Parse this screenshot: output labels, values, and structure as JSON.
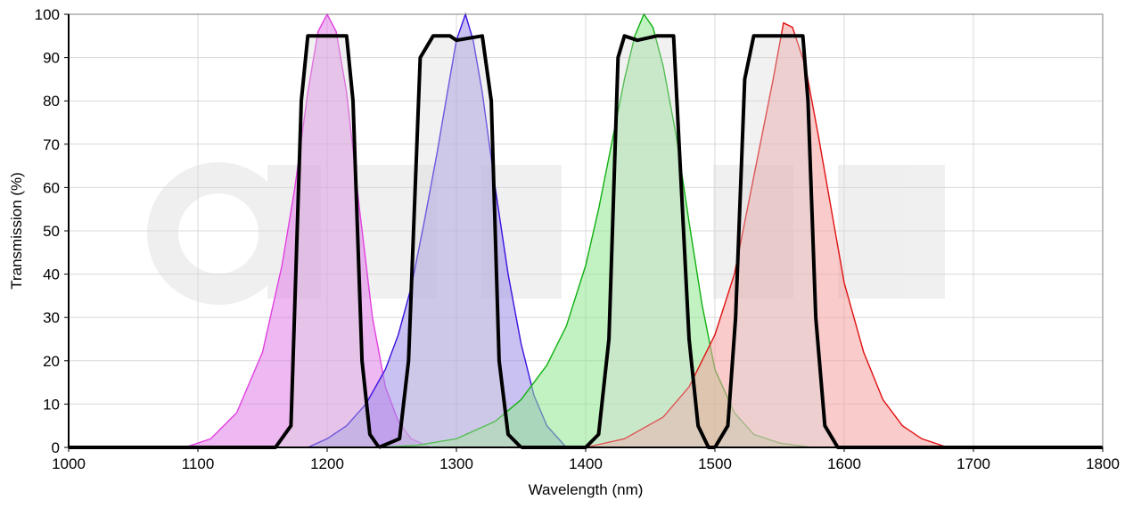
{
  "chart_data": {
    "type": "area",
    "xlabel": "Wavelength (nm)",
    "ylabel": "Transmission (%)",
    "xlim": [
      1000,
      1800
    ],
    "ylim": [
      0,
      100
    ],
    "x_ticks": [
      1000,
      1100,
      1200,
      1300,
      1400,
      1500,
      1600,
      1700,
      1800
    ],
    "y_ticks": [
      0,
      10,
      20,
      30,
      40,
      50,
      60,
      70,
      80,
      90,
      100
    ],
    "grid": true,
    "series": [
      {
        "color": "#e040e0",
        "fill": "#e080e8",
        "points": [
          [
            1090,
            0
          ],
          [
            1110,
            2
          ],
          [
            1130,
            8
          ],
          [
            1150,
            22
          ],
          [
            1165,
            42
          ],
          [
            1175,
            60
          ],
          [
            1185,
            82
          ],
          [
            1193,
            96
          ],
          [
            1200,
            100
          ],
          [
            1207,
            96
          ],
          [
            1215,
            82
          ],
          [
            1225,
            55
          ],
          [
            1235,
            30
          ],
          [
            1245,
            14
          ],
          [
            1255,
            6
          ],
          [
            1265,
            2
          ],
          [
            1280,
            0
          ]
        ]
      },
      {
        "color": "#3a10e0",
        "fill": "#9c8ee8",
        "points": [
          [
            1185,
            0
          ],
          [
            1200,
            2
          ],
          [
            1215,
            5
          ],
          [
            1230,
            10
          ],
          [
            1245,
            18
          ],
          [
            1255,
            26
          ],
          [
            1265,
            37
          ],
          [
            1275,
            52
          ],
          [
            1285,
            68
          ],
          [
            1293,
            82
          ],
          [
            1300,
            94
          ],
          [
            1307,
            100
          ],
          [
            1313,
            94
          ],
          [
            1320,
            82
          ],
          [
            1330,
            60
          ],
          [
            1340,
            40
          ],
          [
            1350,
            24
          ],
          [
            1360,
            12
          ],
          [
            1370,
            5
          ],
          [
            1385,
            0
          ]
        ]
      },
      {
        "color": "#10b010",
        "fill": "#90e890",
        "points": [
          [
            1240,
            0
          ],
          [
            1270,
            0.5
          ],
          [
            1300,
            2
          ],
          [
            1330,
            6
          ],
          [
            1350,
            11
          ],
          [
            1370,
            19
          ],
          [
            1385,
            28
          ],
          [
            1400,
            42
          ],
          [
            1410,
            55
          ],
          [
            1420,
            70
          ],
          [
            1430,
            85
          ],
          [
            1438,
            95
          ],
          [
            1445,
            100
          ],
          [
            1452,
            97
          ],
          [
            1460,
            88
          ],
          [
            1470,
            72
          ],
          [
            1480,
            52
          ],
          [
            1490,
            33
          ],
          [
            1500,
            18
          ],
          [
            1515,
            8
          ],
          [
            1530,
            3
          ],
          [
            1550,
            1
          ],
          [
            1575,
            0
          ]
        ]
      },
      {
        "color": "#e01010",
        "fill": "#f4a0a0",
        "points": [
          [
            1400,
            0
          ],
          [
            1430,
            2
          ],
          [
            1460,
            7
          ],
          [
            1480,
            14
          ],
          [
            1500,
            26
          ],
          [
            1515,
            40
          ],
          [
            1525,
            55
          ],
          [
            1535,
            70
          ],
          [
            1545,
            85
          ],
          [
            1553,
            98
          ],
          [
            1560,
            97
          ],
          [
            1570,
            88
          ],
          [
            1580,
            72
          ],
          [
            1590,
            55
          ],
          [
            1600,
            38
          ],
          [
            1615,
            22
          ],
          [
            1630,
            11
          ],
          [
            1645,
            5
          ],
          [
            1660,
            2
          ],
          [
            1680,
            0
          ]
        ]
      }
    ],
    "filters": [
      {
        "color": "#000000",
        "fill": "#d8d8d8",
        "points": [
          [
            1000,
            0
          ],
          [
            1160,
            0
          ],
          [
            1172,
            5
          ],
          [
            1180,
            80
          ],
          [
            1185,
            95
          ],
          [
            1215,
            95
          ],
          [
            1220,
            80
          ],
          [
            1227,
            20
          ],
          [
            1233,
            3
          ],
          [
            1240,
            0
          ]
        ]
      },
      {
        "color": "#000000",
        "fill": "#d8d8d8",
        "points": [
          [
            1240,
            0
          ],
          [
            1256,
            2
          ],
          [
            1263,
            20
          ],
          [
            1272,
            90
          ],
          [
            1282,
            95
          ],
          [
            1295,
            95
          ],
          [
            1300,
            94
          ],
          [
            1320,
            95
          ],
          [
            1327,
            80
          ],
          [
            1333,
            20
          ],
          [
            1340,
            3
          ],
          [
            1350,
            0
          ]
        ]
      },
      {
        "color": "#000000",
        "fill": "#d8d8d8",
        "points": [
          [
            1350,
            0
          ],
          [
            1400,
            0
          ],
          [
            1410,
            3
          ],
          [
            1418,
            25
          ],
          [
            1425,
            90
          ],
          [
            1430,
            95
          ],
          [
            1440,
            94
          ],
          [
            1455,
            95
          ],
          [
            1468,
            95
          ],
          [
            1474,
            60
          ],
          [
            1480,
            25
          ],
          [
            1487,
            5
          ],
          [
            1495,
            0
          ],
          [
            1500,
            0
          ]
        ]
      },
      {
        "color": "#000000",
        "fill": "#d8d8d8",
        "points": [
          [
            1500,
            0
          ],
          [
            1510,
            5
          ],
          [
            1516,
            30
          ],
          [
            1523,
            85
          ],
          [
            1530,
            95
          ],
          [
            1568,
            95
          ],
          [
            1572,
            80
          ],
          [
            1578,
            30
          ],
          [
            1585,
            5
          ],
          [
            1595,
            0
          ],
          [
            1800,
            0
          ]
        ]
      }
    ]
  }
}
